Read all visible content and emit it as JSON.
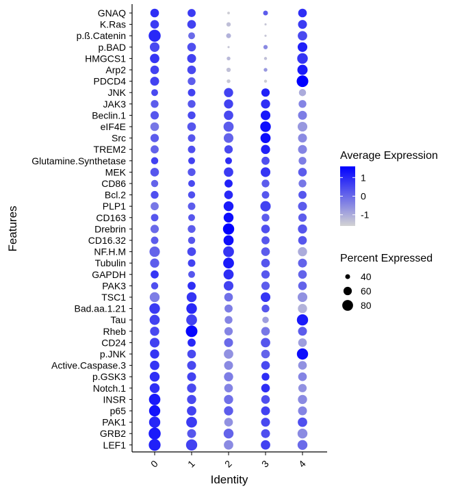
{
  "chart_data": {
    "type": "dot",
    "xlabel": "Identity",
    "ylabel": "Features",
    "x": [
      "0",
      "1",
      "2",
      "3",
      "4"
    ],
    "features_top_to_bottom": [
      "GNAQ",
      "K.Ras",
      "p.ß.Catenin",
      "p.BAD",
      "HMGCS1",
      "Arp2",
      "PDCD4",
      "JNK",
      "JAK3",
      "Beclin.1",
      "eIF4E",
      "Src",
      "TREM2",
      "Glutamine.Synthetase",
      "MEK",
      "CD86",
      "Bcl.2",
      "PLP1",
      "CD163",
      "Drebrin",
      "CD16.32",
      "NF.H.M",
      "Tubulin",
      "GAPDH",
      "PAK3",
      "TSC1",
      "Bad.aa.1.21",
      "Tau",
      "Rheb",
      "CD24",
      "p.JNK",
      "Active.Caspase.3",
      "p.GSK3",
      "Notch.1",
      "INSR",
      "p65",
      "PAK1",
      "GRB2",
      "LEF1"
    ],
    "color_legend": {
      "title": "Average Expression",
      "ticks": [
        1,
        0,
        -1
      ],
      "range": [
        -1.6,
        1.6
      ],
      "low_color": "#d3d3d3",
      "high_color": "#0000ff"
    },
    "size_legend": {
      "title": "Percent Expressed",
      "ticks": [
        40,
        60,
        80
      ],
      "range": [
        30,
        95
      ]
    },
    "avg_expression": [
      [
        0.9,
        0.7,
        -1.5,
        0.2,
        0.9
      ],
      [
        0.7,
        0.6,
        -1.3,
        -1.4,
        0.7
      ],
      [
        1.0,
        0.0,
        -1.1,
        -1.4,
        0.5
      ],
      [
        0.5,
        0.4,
        -1.4,
        -0.5,
        1.1
      ],
      [
        0.8,
        0.6,
        -1.2,
        -1.3,
        0.8
      ],
      [
        0.6,
        0.5,
        -1.3,
        -0.7,
        1.2
      ],
      [
        0.6,
        0.2,
        -1.4,
        -1.5,
        1.6
      ],
      [
        0.5,
        0.6,
        0.6,
        1.1,
        -1.0
      ],
      [
        0.2,
        0.3,
        0.6,
        0.9,
        -0.4
      ],
      [
        0.3,
        0.5,
        0.5,
        1.2,
        -0.3
      ],
      [
        -0.2,
        0.3,
        0.2,
        1.4,
        -0.7
      ],
      [
        0.2,
        0.3,
        0.1,
        1.4,
        -0.5
      ],
      [
        0.1,
        0.4,
        0.5,
        1.1,
        -0.4
      ],
      [
        0.6,
        0.6,
        0.9,
        0.4,
        -0.3
      ],
      [
        0.3,
        0.3,
        0.7,
        0.8,
        0.2
      ],
      [
        0.1,
        0.5,
        1.1,
        0.2,
        -0.2
      ],
      [
        0.4,
        0.4,
        1.0,
        0.3,
        0.3
      ],
      [
        -0.2,
        0.2,
        1.2,
        0.6,
        0.2
      ],
      [
        0.3,
        0.3,
        1.4,
        0.2,
        0.2
      ],
      [
        0.0,
        0.2,
        1.6,
        0.4,
        0.3
      ],
      [
        0.2,
        0.3,
        1.4,
        0.3,
        0.3
      ],
      [
        0.1,
        0.5,
        0.8,
        0.2,
        -1.0
      ],
      [
        0.2,
        0.6,
        1.2,
        0.3,
        0.1
      ],
      [
        0.8,
        0.3,
        0.9,
        0.3,
        0.1
      ],
      [
        0.4,
        0.9,
        0.6,
        0.2,
        0.1
      ],
      [
        -0.3,
        0.8,
        -0.1,
        0.8,
        -0.6
      ],
      [
        0.7,
        1.0,
        -0.3,
        0.3,
        -1.1
      ],
      [
        0.6,
        0.6,
        -0.4,
        -0.8,
        1.2
      ],
      [
        0.5,
        1.5,
        -0.4,
        -0.2,
        0.2
      ],
      [
        0.6,
        1.0,
        0.0,
        0.3,
        -0.8
      ],
      [
        0.8,
        0.5,
        -0.6,
        0.1,
        1.4
      ],
      [
        0.8,
        0.5,
        -0.5,
        0.5,
        -0.6
      ],
      [
        0.9,
        0.6,
        -0.3,
        0.9,
        -0.4
      ],
      [
        0.9,
        0.5,
        -0.4,
        0.9,
        -0.6
      ],
      [
        1.2,
        0.5,
        -0.1,
        0.4,
        -0.5
      ],
      [
        1.3,
        0.6,
        0.2,
        0.6,
        -0.4
      ],
      [
        1.0,
        0.7,
        -0.6,
        0.5,
        0.4
      ],
      [
        1.2,
        0.3,
        0.1,
        0.4,
        -0.5
      ],
      [
        1.1,
        0.6,
        -0.5,
        0.6,
        0.0
      ]
    ],
    "pct_expressed": [
      [
        62,
        58,
        33,
        40,
        62
      ],
      [
        62,
        62,
        38,
        32,
        64
      ],
      [
        92,
        50,
        40,
        32,
        68
      ],
      [
        70,
        62,
        32,
        38,
        70
      ],
      [
        68,
        64,
        36,
        34,
        78
      ],
      [
        62,
        62,
        38,
        36,
        75
      ],
      [
        64,
        56,
        36,
        34,
        88
      ],
      [
        50,
        54,
        66,
        60,
        52
      ],
      [
        56,
        56,
        66,
        66,
        56
      ],
      [
        60,
        56,
        68,
        70,
        64
      ],
      [
        62,
        62,
        74,
        78,
        70
      ],
      [
        60,
        54,
        70,
        74,
        64
      ],
      [
        58,
        54,
        60,
        66,
        64
      ],
      [
        52,
        50,
        50,
        58,
        56
      ],
      [
        62,
        56,
        68,
        70,
        62
      ],
      [
        52,
        50,
        58,
        56,
        56
      ],
      [
        56,
        52,
        62,
        54,
        58
      ],
      [
        58,
        54,
        72,
        76,
        64
      ],
      [
        54,
        50,
        72,
        56,
        60
      ],
      [
        60,
        56,
        84,
        62,
        66
      ],
      [
        54,
        52,
        74,
        58,
        62
      ],
      [
        76,
        62,
        80,
        62,
        66
      ],
      [
        66,
        54,
        80,
        62,
        64
      ],
      [
        58,
        50,
        74,
        60,
        62
      ],
      [
        52,
        58,
        70,
        60,
        62
      ],
      [
        72,
        72,
        62,
        70,
        70
      ],
      [
        78,
        78,
        58,
        56,
        66
      ],
      [
        74,
        80,
        56,
        48,
        84
      ],
      [
        66,
        88,
        60,
        62,
        64
      ],
      [
        70,
        58,
        64,
        68,
        62
      ],
      [
        66,
        62,
        68,
        62,
        84
      ],
      [
        68,
        64,
        64,
        62,
        62
      ],
      [
        72,
        64,
        66,
        56,
        62
      ],
      [
        72,
        66,
        62,
        62,
        60
      ],
      [
        86,
        66,
        66,
        62,
        66
      ],
      [
        84,
        68,
        66,
        64,
        64
      ],
      [
        84,
        80,
        62,
        64,
        68
      ],
      [
        92,
        64,
        72,
        64,
        72
      ],
      [
        90,
        84,
        68,
        68,
        72
      ]
    ]
  }
}
